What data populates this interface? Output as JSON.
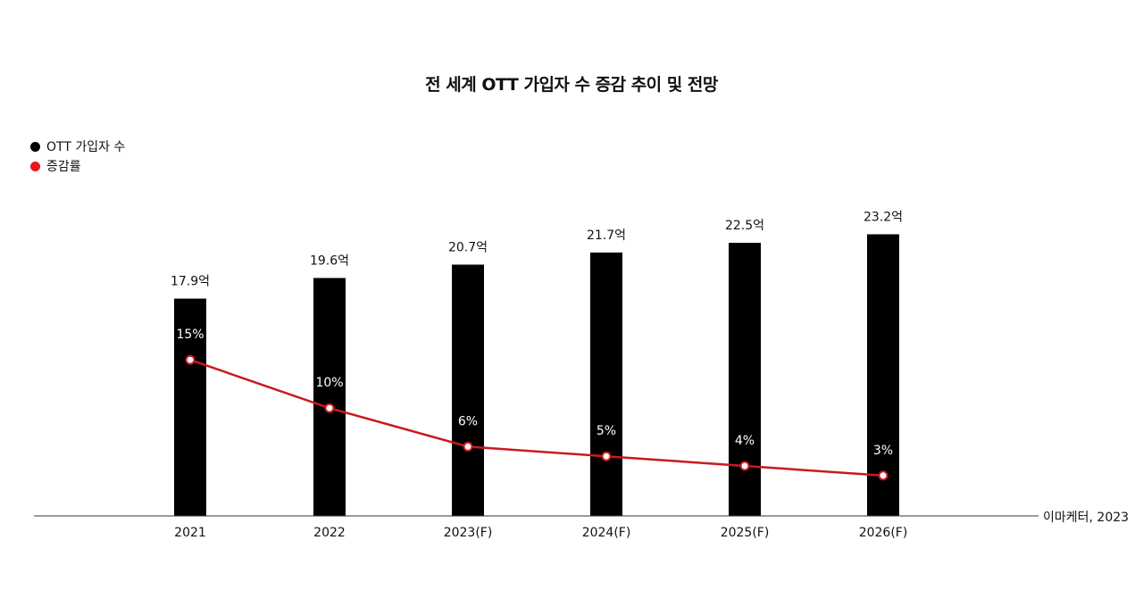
{
  "chart_data": {
    "type": "bar",
    "title": "전 세계 OTT 가입자 수 증감 추이 및 전망",
    "categories": [
      "2021",
      "2022",
      "2023(F)",
      "2024(F)",
      "2025(F)",
      "2026(F)"
    ],
    "series": [
      {
        "name": "OTT 가입자 수",
        "kind": "bar",
        "color": "#000000",
        "values": [
          17.9,
          19.6,
          20.7,
          21.7,
          22.5,
          23.2
        ],
        "labels": [
          "17.9억",
          "19.6억",
          "20.7억",
          "21.7억",
          "22.5억",
          "23.2억"
        ]
      },
      {
        "name": "증감률",
        "kind": "line",
        "color": "#e8161b",
        "values": [
          15,
          10,
          6,
          5,
          4,
          3
        ],
        "labels": [
          "15%",
          "10%",
          "6%",
          "5%",
          "4%",
          "3%"
        ]
      }
    ],
    "legend": "top-left",
    "grid": false,
    "source": "이마케터, 2023"
  },
  "colors": {
    "bar": "#000000",
    "line": "#c91a1f",
    "legend_rate": "#e8161b"
  }
}
